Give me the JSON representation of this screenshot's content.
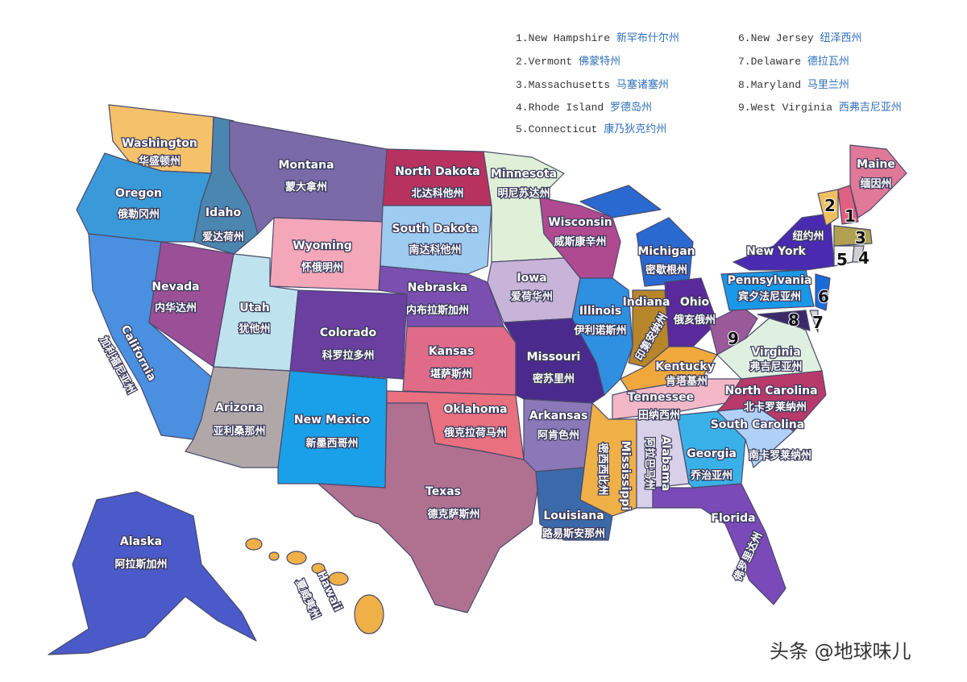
{
  "legend": [
    {
      "en": "1.New Hampshire",
      "zh": "新罕布什尔州"
    },
    {
      "en": "2.Vermont",
      "zh": "佛蒙特州"
    },
    {
      "en": "3.Massachusetts",
      "zh": "马塞诸塞州"
    },
    {
      "en": "4.Rhode Island",
      "zh": "罗德岛州"
    },
    {
      "en": "5.Connecticut",
      "zh": "康乃狄克约州"
    },
    {
      "en": "6.New Jersey",
      "zh": "纽泽西州"
    },
    {
      "en": "7.Delaware",
      "zh": "德拉瓦州"
    },
    {
      "en": "8.Maryland",
      "zh": "马里兰州"
    },
    {
      "en": "9.West Virginia",
      "zh": "西弗吉尼亚州"
    }
  ],
  "states": [
    {
      "en": "Washington",
      "zh": "华盛顿州",
      "color": "#f5c26b"
    },
    {
      "en": "Oregon",
      "zh": "俄勒冈州",
      "color": "#3a9ad9"
    },
    {
      "en": "California",
      "zh": "加利福尼亚州",
      "color": "#4a8fe0"
    },
    {
      "en": "Nevada",
      "zh": "内华达州",
      "color": "#9b4f96"
    },
    {
      "en": "Idaho",
      "zh": "爱达荷州",
      "color": "#4a86b0"
    },
    {
      "en": "Montana",
      "zh": "蒙大拿州",
      "color": "#7b6aa8"
    },
    {
      "en": "Wyoming",
      "zh": "怀俄明州",
      "color": "#f4a7b9"
    },
    {
      "en": "Utah",
      "zh": "犹他州",
      "color": "#bfe3ee"
    },
    {
      "en": "Arizona",
      "zh": "亚利桑那州",
      "color": "#b0a8a8"
    },
    {
      "en": "Colorado",
      "zh": "科罗拉多州",
      "color": "#6a3fa0"
    },
    {
      "en": "New Mexico",
      "zh": "新墨西哥州",
      "color": "#1aa0e8"
    },
    {
      "en": "North Dakota",
      "zh": "北达科他州",
      "color": "#b83260"
    },
    {
      "en": "South Dakota",
      "zh": "南达科他州",
      "color": "#9ecbf0"
    },
    {
      "en": "Nebraska",
      "zh": "内布拉斯加州",
      "color": "#7a4fb0"
    },
    {
      "en": "Kansas",
      "zh": "堪萨斯州",
      "color": "#e06b88"
    },
    {
      "en": "Oklahoma",
      "zh": "俄克拉荷马州",
      "color": "#e8707f"
    },
    {
      "en": "Texas",
      "zh": "德克萨斯州",
      "color": "#b07090"
    },
    {
      "en": "Minnesota",
      "zh": "明尼苏达州",
      "color": "#e0f0d8"
    },
    {
      "en": "Iowa",
      "zh": "爱荷华州",
      "color": "#c8b4d8"
    },
    {
      "en": "Missouri",
      "zh": "密苏里州",
      "color": "#4a2a8c"
    },
    {
      "en": "Arkansas",
      "zh": "阿肯色州",
      "color": "#8a78b8"
    },
    {
      "en": "Louisiana",
      "zh": "路易斯安那州",
      "color": "#3a6aaa"
    },
    {
      "en": "Wisconsin",
      "zh": "威斯康辛州",
      "color": "#b04a90"
    },
    {
      "en": "Illinois",
      "zh": "伊利诺斯州",
      "color": "#2f8fe0"
    },
    {
      "en": "Michigan",
      "zh": "密歇根州",
      "color": "#2a6ad0"
    },
    {
      "en": "Indiana",
      "zh": "印第安纳州",
      "color": "#b8862a"
    },
    {
      "en": "Ohio",
      "zh": "俄亥俄州",
      "color": "#5a2a9c"
    },
    {
      "en": "Kentucky",
      "zh": "肯塔基州",
      "color": "#f0a83c"
    },
    {
      "en": "Tennessee",
      "zh": "田纳西州",
      "color": "#f2b8c8"
    },
    {
      "en": "Mississippi",
      "zh": "密西西比州",
      "color": "#f0b048"
    },
    {
      "en": "Alabama",
      "zh": "阿拉巴马州",
      "color": "#d8d0e8"
    },
    {
      "en": "Georgia",
      "zh": "乔治亚州",
      "color": "#3ab0e8"
    },
    {
      "en": "Florida",
      "zh": "佛罗里达州",
      "color": "#7a4ab8"
    },
    {
      "en": "South Carolina",
      "zh": "南卡罗莱纳州",
      "color": "#b0d0f8"
    },
    {
      "en": "North Carolina",
      "zh": "北卡罗莱纳州",
      "color": "#b83a6a"
    },
    {
      "en": "Virginia",
      "zh": "弗吉尼亚州",
      "color": "#e0f0e0"
    },
    {
      "en": "",
      "zh": "",
      "color": "#9a5a9a",
      "num": "9"
    },
    {
      "en": "Pennsylvania",
      "zh": "宾夕法尼亚州",
      "color": "#1a98e8"
    },
    {
      "en": "New York",
      "zh": "纽约州",
      "color": "#4a2ab0"
    },
    {
      "en": "",
      "zh": "",
      "color": "#3a2a6a",
      "num": "8"
    },
    {
      "en": "",
      "zh": "",
      "color": "#d8d8d8",
      "num": "7"
    },
    {
      "en": "",
      "zh": "",
      "color": "#1a6ad8",
      "num": "6"
    },
    {
      "en": "",
      "zh": "",
      "color": "#f0c060",
      "num": "2"
    },
    {
      "en": "",
      "zh": "",
      "color": "#e06080",
      "num": "1"
    },
    {
      "en": "Maine",
      "zh": "缅因州",
      "color": "#e07898"
    },
    {
      "en": "",
      "zh": "",
      "color": "#b0a050",
      "num": "3"
    },
    {
      "en": "",
      "zh": "",
      "color": "#f2f2f2",
      "num": "5"
    },
    {
      "en": "",
      "zh": "",
      "color": "#d0d0d0",
      "num": "4"
    },
    {
      "en": "Alaska",
      "zh": "阿拉斯加州",
      "color": "#4a5ac8"
    },
    {
      "en": "Hawaii",
      "zh": "夏威夷州",
      "color": "#f0b048"
    }
  ],
  "watermark": "头条 @地球味儿"
}
